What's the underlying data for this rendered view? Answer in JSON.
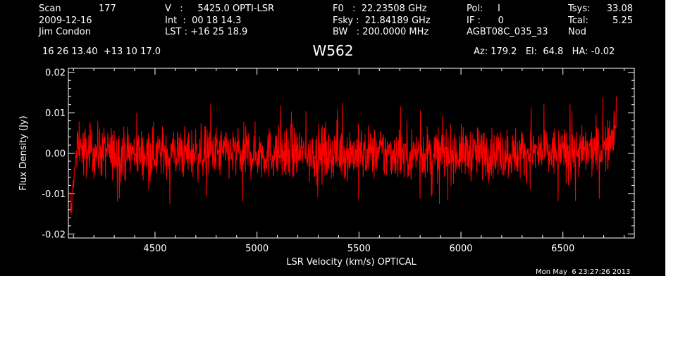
{
  "header": {
    "col1": {
      "scan_label": "Scan",
      "scan_value": "177",
      "date": "2009-12-16",
      "observer": "Jim Condon",
      "position": "16 26 13.40  +13 10 17.0"
    },
    "col2": {
      "v_line": "V   :     5425.0 OPTI-LSR",
      "int_line": "Int  :  00 18 14.3",
      "lst_line": "LST : +16 25 18.9"
    },
    "col3": {
      "f0_line": "F0   :  22.23508 GHz",
      "fsky_line": "Fsky :  21.84189 GHz",
      "bw_line": "BW   : 200.0000 MHz"
    },
    "col4": {
      "pol_line": "Pol:     I",
      "if_line": "IF :      0",
      "project": "AGBT08C_035_33"
    },
    "col5": {
      "tsys_label": "Tsys:",
      "tsys_value": "33.08",
      "tcal_label": "Tcal:",
      "tcal_value": "5.25",
      "mode": "Nod"
    },
    "pointing": "Az: 179.2   El:  64.8   HA: -0.02",
    "source": "W562"
  },
  "timestamp": "Mon May  6 23:27:26 2013",
  "colors": {
    "background": "#000000",
    "axes": "#ffffff",
    "spectrum": "#ff0000"
  },
  "chart_data": {
    "type": "line",
    "title": "W562",
    "xlabel": "LSR Velocity (km/s) OPTICAL",
    "ylabel": "Flux Density (Jy)",
    "xlim": [
      4075,
      6850
    ],
    "ylim": [
      -0.021,
      0.021
    ],
    "xticks": [
      4500,
      5000,
      5500,
      6000,
      6500
    ],
    "xtick_labels": [
      "4500",
      "5000",
      "5500",
      "6000",
      "6500"
    ],
    "yticks": [
      -0.02,
      -0.01,
      0.0,
      0.01,
      0.02
    ],
    "ytick_labels": [
      "-0.02",
      "-0.01",
      "0.00",
      "0.01",
      "0.02"
    ],
    "grid": false,
    "series": [
      {
        "color": "#ff0000",
        "points": [
          [
            4082,
            -0.011
          ],
          [
            4087,
            -0.015
          ],
          [
            4092,
            -0.013
          ],
          [
            4097,
            -0.008
          ],
          [
            4102,
            -0.006
          ],
          [
            4107,
            -0.004
          ],
          [
            4112,
            -0.001
          ],
          [
            4117,
            0.002
          ],
          [
            4122,
            0.004
          ],
          [
            4130,
            0.003
          ],
          [
            4140,
            0.001
          ],
          [
            4150,
            0.0
          ],
          [
            4200,
            0.0005
          ],
          [
            4300,
            0.0
          ],
          [
            4400,
            0.0
          ],
          [
            4500,
            0.0
          ],
          [
            4600,
            0.0
          ],
          [
            4700,
            0.0
          ],
          [
            4800,
            0.0
          ],
          [
            4900,
            0.0
          ],
          [
            5000,
            0.0
          ],
          [
            5100,
            0.0
          ],
          [
            5200,
            0.0
          ],
          [
            5300,
            0.0
          ],
          [
            5400,
            0.0
          ],
          [
            5500,
            0.0
          ],
          [
            5600,
            0.0
          ],
          [
            5700,
            0.0
          ],
          [
            5800,
            0.0
          ],
          [
            5900,
            0.0
          ],
          [
            6000,
            0.0
          ],
          [
            6100,
            0.0
          ],
          [
            6200,
            0.0
          ],
          [
            6300,
            0.0
          ],
          [
            6400,
            0.0
          ],
          [
            6500,
            0.0
          ],
          [
            6600,
            0.0
          ],
          [
            6650,
            0.0005
          ],
          [
            6700,
            0.001
          ],
          [
            6720,
            0.002
          ],
          [
            6735,
            0.003
          ],
          [
            6745,
            0.005
          ],
          [
            6752,
            0.006
          ],
          [
            6757,
            0.009
          ],
          [
            6762,
            0.011
          ]
        ],
        "noise_rms": 0.0032,
        "noise_peak": 0.013
      }
    ]
  }
}
